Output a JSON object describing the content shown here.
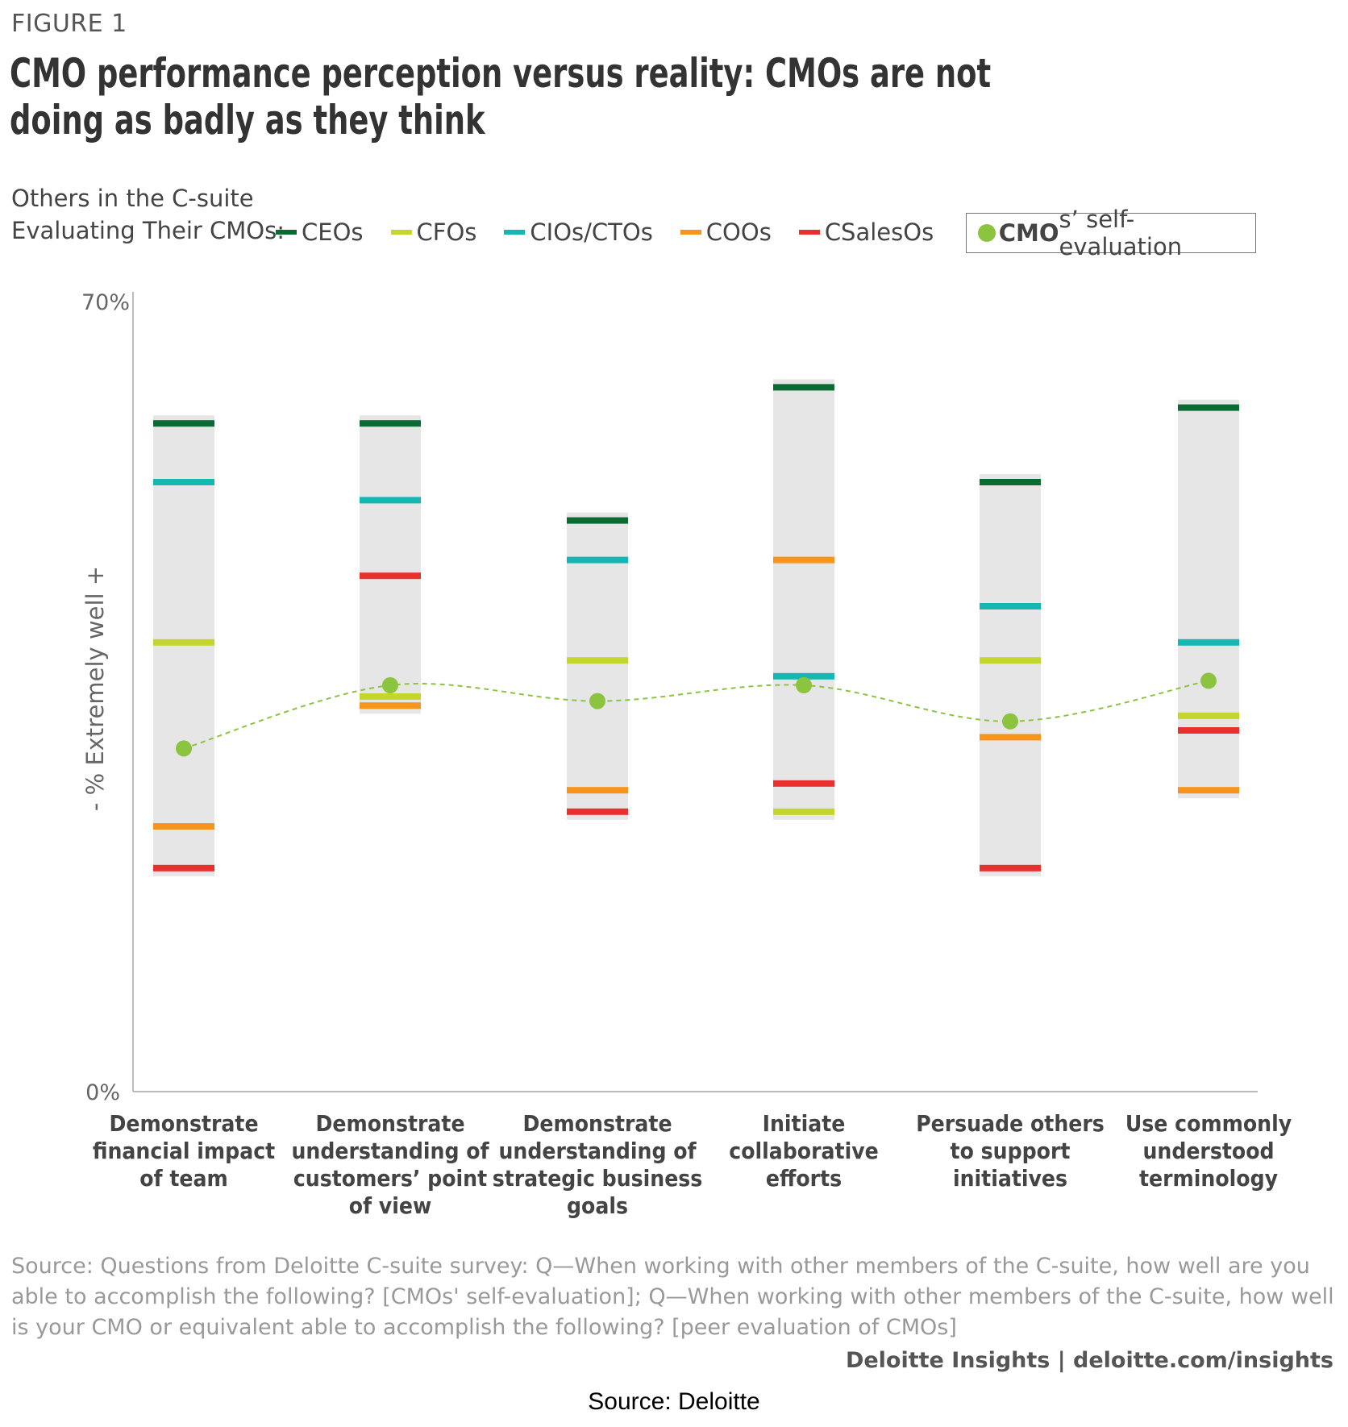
{
  "figure_label": "FIGURE 1",
  "title": "CMO performance perception versus reality: CMOs are not doing as badly as they think",
  "legend": {
    "intro_line1": "Others in the C-suite",
    "intro_line2": "Evaluating Their CMOs:",
    "self_eval_bold": "CMO",
    "self_eval_rest": "s’ self-evaluation"
  },
  "colors": {
    "CEOs": "#0b6b33",
    "CFOs": "#c4d62e",
    "CIOs/CTOs": "#15b7b3",
    "COOs": "#f7941d",
    "CSalesOs": "#e8312f",
    "self": "#8cc43f",
    "range_band": "#e6e6e7",
    "axis": "#bbbbbb"
  },
  "chart_data": {
    "type": "range_dot",
    "ylabel": "- % Extremely well +",
    "ylim": [
      0,
      70
    ],
    "y_tick_labels": [
      "70%",
      "0%"
    ],
    "categories": [
      [
        "Demonstrate",
        "financial impact",
        "of team"
      ],
      [
        "Demonstrate",
        "understanding of",
        "customers’ point",
        "of view"
      ],
      [
        "Demonstrate",
        "understanding of",
        "strategic business",
        "goals"
      ],
      [
        "Initiate",
        "collaborative",
        "efforts"
      ],
      [
        "Persuade others",
        "to support",
        "initiatives"
      ],
      [
        "Use commonly",
        "understood",
        "terminology"
      ]
    ],
    "series": [
      {
        "name": "CEOs",
        "values": [
          59.2,
          59.2,
          50.6,
          62.4,
          54.0,
          60.6
        ]
      },
      {
        "name": "CFOs",
        "values": [
          39.8,
          35.0,
          38.2,
          24.8,
          38.2,
          33.3
        ]
      },
      {
        "name": "CIOs/CTOs",
        "values": [
          54.0,
          52.4,
          47.1,
          36.8,
          43.0,
          39.8
        ]
      },
      {
        "name": "COOs",
        "values": [
          23.5,
          34.2,
          26.7,
          47.1,
          31.4,
          26.7
        ]
      },
      {
        "name": "CSalesOs",
        "values": [
          19.8,
          45.7,
          24.8,
          27.3,
          19.8,
          32.0
        ]
      }
    ],
    "self_evaluation": {
      "name": "CMOs’ self-evaluation",
      "values": [
        30.4,
        36.0,
        34.6,
        36.0,
        32.8,
        36.4
      ]
    }
  },
  "source_text": "Source: Questions from Deloitte C-suite survey: Q—When working with other members of the C-suite, how well are you able to accomplish the following? [CMOs' self-evaluation]; Q—When working with other members of the C-suite, how well is your CMO or equivalent able to accomplish the following? [peer evaluation of CMOs]",
  "brand_text": "Deloitte Insights | deloitte.com/insights",
  "caption": "Source: Deloitte"
}
